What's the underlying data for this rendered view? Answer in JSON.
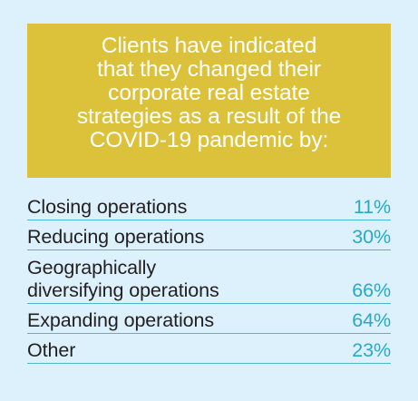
{
  "header": {
    "text": "Clients have indicated\nthat they changed their\ncorporate real estate\nstrategies as a result of the\nCOVID-19 pandemic by:"
  },
  "items": [
    {
      "label": "Closing operations",
      "value": "11%"
    },
    {
      "label": "Reducing operations",
      "value": "30%"
    },
    {
      "label": "Geographically\ndiversifying operations",
      "value": "66%"
    },
    {
      "label": "Expanding operations",
      "value": "64%"
    },
    {
      "label": "Other",
      "value": "23%"
    }
  ],
  "colors": {
    "background": "#dcf1fb",
    "header_fill": "#dcc23a",
    "header_text": "#ffffff",
    "label_text": "#231f20",
    "value_text": "#2ba8c5",
    "divider": "#4fb8c8"
  }
}
